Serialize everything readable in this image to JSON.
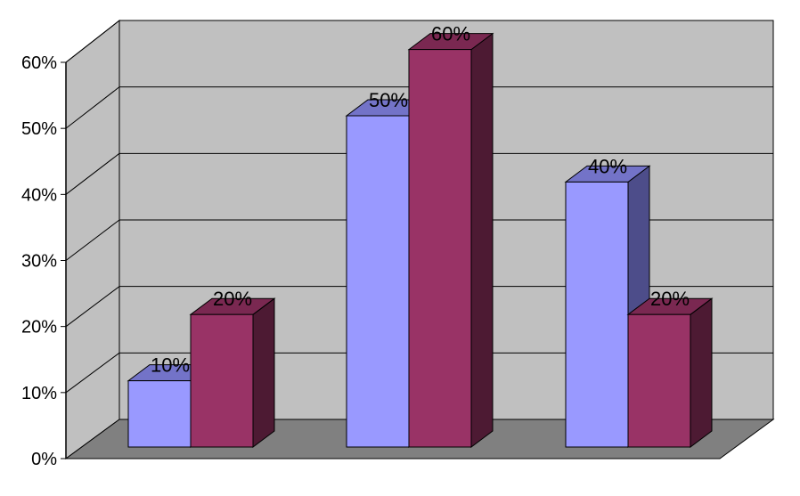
{
  "chart_data": {
    "type": "bar",
    "style": "3d-clustered-column",
    "categories": [
      "",
      "",
      ""
    ],
    "series": [
      {
        "values": [
          10,
          50,
          40
        ],
        "color": "#9999ff",
        "top_color": "#7373c8",
        "side_color": "#4d4d8a"
      },
      {
        "values": [
          20,
          60,
          20
        ],
        "color": "#993366",
        "top_color": "#7a2851",
        "side_color": "#4d1a33"
      }
    ],
    "data_labels": [
      [
        "10%",
        "50%",
        "40%"
      ],
      [
        "20%",
        "60%",
        "20%"
      ]
    ],
    "y_ticks": [
      "0%",
      "10%",
      "20%",
      "30%",
      "40%",
      "50%",
      "60%"
    ],
    "ylim": [
      0,
      60
    ],
    "grid": true,
    "legend": "none",
    "wall_color": "#c0c0c0",
    "floor_color": "#808080"
  }
}
